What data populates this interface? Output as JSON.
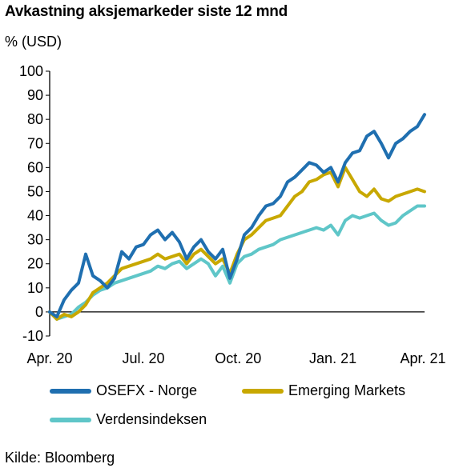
{
  "title": "Avkastning aksjemarkeder siste 12 mnd",
  "unit": "% (USD)",
  "source": "Kilde: Bloomberg",
  "legend": [
    {
      "name": "OSEFX - Norge",
      "color": "#1f6fb0"
    },
    {
      "name": "Emerging Markets",
      "color": "#c8a800"
    },
    {
      "name": "Verdensindeksen",
      "color": "#5fc6c8"
    }
  ],
  "chart_data": {
    "type": "line",
    "title": "Avkastning aksjemarkeder siste 12 mnd",
    "ylabel": "% (USD)",
    "xlabel": "",
    "ylim": [
      -10,
      100
    ],
    "yticks": [
      -10,
      0,
      10,
      20,
      30,
      40,
      50,
      60,
      70,
      80,
      90,
      100
    ],
    "xticks": [
      "Apr. 20",
      "Jul. 20",
      "Oct. 20",
      "Jan. 21",
      "Apr. 21"
    ],
    "x": [
      "2020-04-01",
      "2020-04-08",
      "2020-04-15",
      "2020-04-22",
      "2020-04-29",
      "2020-05-06",
      "2020-05-13",
      "2020-05-20",
      "2020-05-27",
      "2020-06-03",
      "2020-06-10",
      "2020-06-17",
      "2020-06-24",
      "2020-07-01",
      "2020-07-08",
      "2020-07-15",
      "2020-07-22",
      "2020-07-29",
      "2020-08-05",
      "2020-08-12",
      "2020-08-19",
      "2020-08-26",
      "2020-09-02",
      "2020-09-09",
      "2020-09-16",
      "2020-09-23",
      "2020-09-30",
      "2020-10-07",
      "2020-10-14",
      "2020-10-21",
      "2020-10-28",
      "2020-11-04",
      "2020-11-11",
      "2020-11-18",
      "2020-11-25",
      "2020-12-02",
      "2020-12-09",
      "2020-12-16",
      "2020-12-23",
      "2020-12-30",
      "2021-01-06",
      "2021-01-13",
      "2021-01-20",
      "2021-01-27",
      "2021-02-03",
      "2021-02-10",
      "2021-02-17",
      "2021-02-24",
      "2021-03-03",
      "2021-03-10",
      "2021-03-17",
      "2021-03-24",
      "2021-03-31"
    ],
    "grid": false,
    "legend_position": "bottom",
    "series": [
      {
        "name": "OSEFX - Norge",
        "color": "#1f6fb0",
        "values": [
          0,
          -2,
          5,
          9,
          12,
          24,
          15,
          13,
          10,
          14,
          25,
          22,
          27,
          28,
          32,
          34,
          30,
          33,
          29,
          22,
          27,
          30,
          25,
          22,
          26,
          14,
          22,
          32,
          35,
          40,
          44,
          45,
          48,
          54,
          56,
          59,
          62,
          61,
          58,
          60,
          54,
          62,
          66,
          67,
          73,
          75,
          70,
          64,
          70,
          72,
          75,
          77,
          82
        ]
      },
      {
        "name": "Emerging Markets",
        "color": "#c8a800",
        "values": [
          0,
          -3,
          -1,
          -2,
          0,
          3,
          8,
          10,
          12,
          15,
          18,
          19,
          20,
          21,
          22,
          24,
          22,
          23,
          24,
          20,
          24,
          26,
          23,
          20,
          22,
          16,
          24,
          30,
          32,
          35,
          38,
          39,
          40,
          44,
          48,
          50,
          54,
          55,
          57,
          58,
          52,
          60,
          55,
          50,
          48,
          51,
          47,
          46,
          48,
          49,
          50,
          51,
          50
        ]
      },
      {
        "name": "Verdensindeksen",
        "color": "#5fc6c8",
        "values": [
          0,
          -3,
          -2,
          -1,
          2,
          4,
          7,
          9,
          10,
          12,
          13,
          14,
          15,
          16,
          17,
          19,
          18,
          20,
          21,
          18,
          20,
          22,
          20,
          15,
          19,
          12,
          20,
          23,
          24,
          26,
          27,
          28,
          30,
          31,
          32,
          33,
          34,
          35,
          34,
          36,
          32,
          38,
          40,
          39,
          40,
          41,
          38,
          36,
          37,
          40,
          42,
          44,
          44
        ]
      }
    ]
  }
}
